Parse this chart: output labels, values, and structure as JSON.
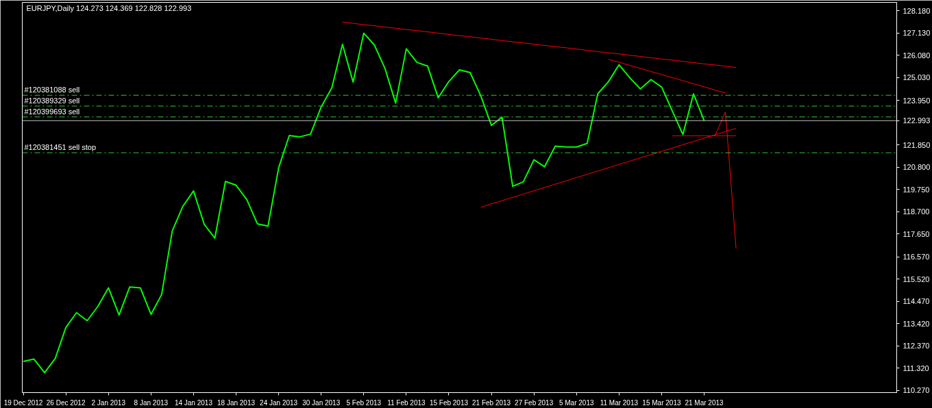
{
  "chart_data": {
    "type": "line",
    "title": "EURJPY,Daily  124.273 124.369 122.828 122.993",
    "categories": [
      "19 Dec 2012",
      null,
      null,
      null,
      "26 Dec 2012",
      null,
      null,
      null,
      "2 Jan 2013",
      null,
      null,
      null,
      "8 Jan 2013",
      null,
      null,
      null,
      "14 Jan 2013",
      null,
      null,
      null,
      "18 Jan 2013",
      null,
      null,
      null,
      "24 Jan 2013",
      null,
      null,
      null,
      "30 Jan 2013",
      null,
      null,
      null,
      "5 Feb 2013",
      null,
      null,
      null,
      "11 Feb 2013",
      null,
      null,
      null,
      "15 Feb 2013",
      null,
      null,
      null,
      "21 Feb 2013",
      null,
      null,
      null,
      "27 Feb 2013",
      null,
      null,
      null,
      "5 Mar 2013",
      null,
      null,
      null,
      "11 Mar 2013",
      null,
      null,
      null,
      "15 Mar 2013",
      null,
      null,
      null,
      "21 Mar 2013",
      null,
      null,
      null,
      null,
      null,
      null,
      null,
      null,
      null,
      null,
      null,
      null,
      null,
      null,
      null,
      null,
      null,
      null
    ],
    "series": [
      {
        "color": "#00ff00",
        "values": [
          111.64,
          111.75,
          111.11,
          111.78,
          113.24,
          113.94,
          113.56,
          114.23,
          115.11,
          113.83,
          115.15,
          115.11,
          113.86,
          114.79,
          117.79,
          118.96,
          119.68,
          118.11,
          117.45,
          120.13,
          119.95,
          119.28,
          118.13,
          118.02,
          120.77,
          122.29,
          122.23,
          122.36,
          123.64,
          124.54,
          126.59,
          124.81,
          127.12,
          126.56,
          125.45,
          123.82,
          126.38,
          125.74,
          125.57,
          124.07,
          124.84,
          125.39,
          125.26,
          124.17,
          122.77,
          123.16,
          119.9,
          120.11,
          121.15,
          120.82,
          121.79,
          121.75,
          121.75,
          121.92,
          124.26,
          124.83,
          125.63,
          125.02,
          124.49,
          124.93,
          124.58,
          123.46,
          122.34,
          124.26,
          122.99,
          null,
          null,
          null,
          null,
          null,
          null,
          null,
          null,
          null,
          null,
          null,
          null,
          null,
          null,
          null,
          null,
          null,
          null
        ]
      },
      {
        "color": "#ff0000",
        "values": [
          null,
          null,
          null,
          null,
          null,
          null,
          null,
          null,
          null,
          null,
          null,
          null,
          null,
          null,
          null,
          null,
          null,
          null,
          null,
          null,
          null,
          null,
          null,
          null,
          null,
          null,
          null,
          null,
          null,
          null,
          127.64,
          127.58,
          127.52,
          127.47,
          127.41,
          127.35,
          127.29,
          127.24,
          127.18,
          127.12,
          127.06,
          127.0,
          126.95,
          126.89,
          126.83,
          126.77,
          126.71,
          126.66,
          126.6,
          126.54,
          126.48,
          126.43,
          126.37,
          126.31,
          126.25,
          126.19,
          126.14,
          126.08,
          126.02,
          125.96,
          125.9,
          125.85,
          125.79,
          125.73,
          125.67,
          125.62,
          125.56,
          125.5,
          null,
          null,
          null,
          null,
          null,
          null,
          null,
          null,
          null,
          null,
          null,
          null,
          null,
          null,
          null
        ]
      },
      {
        "color": "#ff0000",
        "values": [
          null,
          null,
          null,
          null,
          null,
          null,
          null,
          null,
          null,
          null,
          null,
          null,
          null,
          null,
          null,
          null,
          null,
          null,
          null,
          null,
          null,
          null,
          null,
          null,
          null,
          null,
          null,
          null,
          null,
          null,
          null,
          null,
          null,
          null,
          null,
          null,
          null,
          null,
          null,
          null,
          null,
          null,
          null,
          null,
          null,
          null,
          null,
          null,
          null,
          null,
          null,
          null,
          null,
          null,
          null,
          125.89,
          125.75,
          125.6,
          125.46,
          125.31,
          125.17,
          125.02,
          124.88,
          124.73,
          124.59,
          124.44,
          124.3,
          null,
          null,
          null,
          null,
          null,
          null,
          null,
          null,
          null,
          null,
          null,
          null,
          null,
          null,
          null,
          null
        ]
      },
      {
        "color": "#ff0000",
        "values": [
          null,
          null,
          null,
          null,
          null,
          null,
          null,
          null,
          null,
          null,
          null,
          null,
          null,
          null,
          null,
          null,
          null,
          null,
          null,
          null,
          null,
          null,
          null,
          null,
          null,
          null,
          null,
          null,
          null,
          null,
          null,
          null,
          null,
          null,
          null,
          null,
          null,
          null,
          null,
          null,
          null,
          null,
          null,
          118.91,
          119.07,
          119.22,
          119.38,
          119.53,
          119.69,
          119.84,
          120.0,
          120.15,
          120.31,
          120.46,
          120.62,
          120.77,
          120.93,
          121.08,
          121.24,
          121.39,
          121.55,
          121.7,
          121.86,
          122.01,
          122.17,
          122.32,
          122.48,
          122.63,
          null,
          null,
          null,
          null,
          null,
          null,
          null,
          null,
          null,
          null,
          null,
          null,
          null,
          null,
          null
        ]
      },
      {
        "color": "#ff0000",
        "values": [
          null,
          null,
          null,
          null,
          null,
          null,
          null,
          null,
          null,
          null,
          null,
          null,
          null,
          null,
          null,
          null,
          null,
          null,
          null,
          null,
          null,
          null,
          null,
          null,
          null,
          null,
          null,
          null,
          null,
          null,
          null,
          null,
          null,
          null,
          null,
          null,
          null,
          null,
          null,
          null,
          null,
          null,
          null,
          null,
          null,
          null,
          null,
          null,
          null,
          null,
          null,
          null,
          null,
          null,
          null,
          null,
          null,
          null,
          null,
          null,
          null,
          122.28,
          122.28,
          122.28,
          122.28,
          122.28,
          122.28,
          122.28,
          null,
          null,
          null,
          null,
          null,
          null,
          null,
          null,
          null,
          null,
          null,
          null,
          null,
          null,
          null
        ]
      },
      {
        "color": "#ff0000",
        "values": [
          null,
          null,
          null,
          null,
          null,
          null,
          null,
          null,
          null,
          null,
          null,
          null,
          null,
          null,
          null,
          null,
          null,
          null,
          null,
          null,
          null,
          null,
          null,
          null,
          null,
          null,
          null,
          null,
          null,
          null,
          null,
          null,
          null,
          null,
          null,
          null,
          null,
          null,
          null,
          null,
          null,
          null,
          null,
          null,
          null,
          null,
          null,
          null,
          null,
          null,
          null,
          null,
          null,
          null,
          null,
          null,
          null,
          null,
          null,
          null,
          null,
          null,
          null,
          null,
          null,
          122.26,
          123.4,
          116.96,
          null,
          null,
          null,
          null,
          null,
          null,
          null,
          null,
          null,
          null,
          null,
          null,
          null,
          null,
          null
        ]
      }
    ],
    "ylim": [
      110.17,
      128.57
    ],
    "yticks": [
      {
        "value": 110.27,
        "label": "110.270"
      },
      {
        "value": 111.32,
        "label": "111.320"
      },
      {
        "value": 112.37,
        "label": "112.370"
      },
      {
        "value": 113.42,
        "label": "113.420"
      },
      {
        "value": 114.47,
        "label": "114.470"
      },
      {
        "value": 115.52,
        "label": "115.520"
      },
      {
        "value": 116.57,
        "label": "116.570"
      },
      {
        "value": 117.65,
        "label": "117.650"
      },
      {
        "value": 118.7,
        "label": "118.700"
      },
      {
        "value": 119.75,
        "label": "119.750"
      },
      {
        "value": 120.8,
        "label": "120.800"
      },
      {
        "value": 121.85,
        "label": "121.850"
      },
      {
        "value": 122.993,
        "label": "122.993"
      },
      {
        "value": 123.95,
        "label": "123.950"
      },
      {
        "value": 125.03,
        "label": "125.030"
      },
      {
        "value": 126.08,
        "label": "126.080"
      },
      {
        "value": 127.13,
        "label": "127.130"
      },
      {
        "value": 128.18,
        "label": "128.180"
      }
    ],
    "ref_lines": [
      {
        "axis": "y",
        "value": 124.19,
        "label": "#120381088 sell",
        "color": "#32cd32",
        "line_style": "dashed"
      },
      {
        "axis": "y",
        "value": 123.68,
        "label": "#120389329 sell",
        "color": "#32cd32",
        "line_style": "dashed"
      },
      {
        "axis": "y",
        "value": 123.17,
        "label": "#120399693 sell",
        "color": "#32cd32",
        "line_style": "dashed"
      },
      {
        "axis": "y",
        "value": 121.48,
        "label": "#120381451 sell stop",
        "color": "#32cd32",
        "line_style": "dashed"
      },
      {
        "axis": "y",
        "value": 122.993,
        "color": "#c0c0c0",
        "line_style": "solid"
      }
    ]
  }
}
